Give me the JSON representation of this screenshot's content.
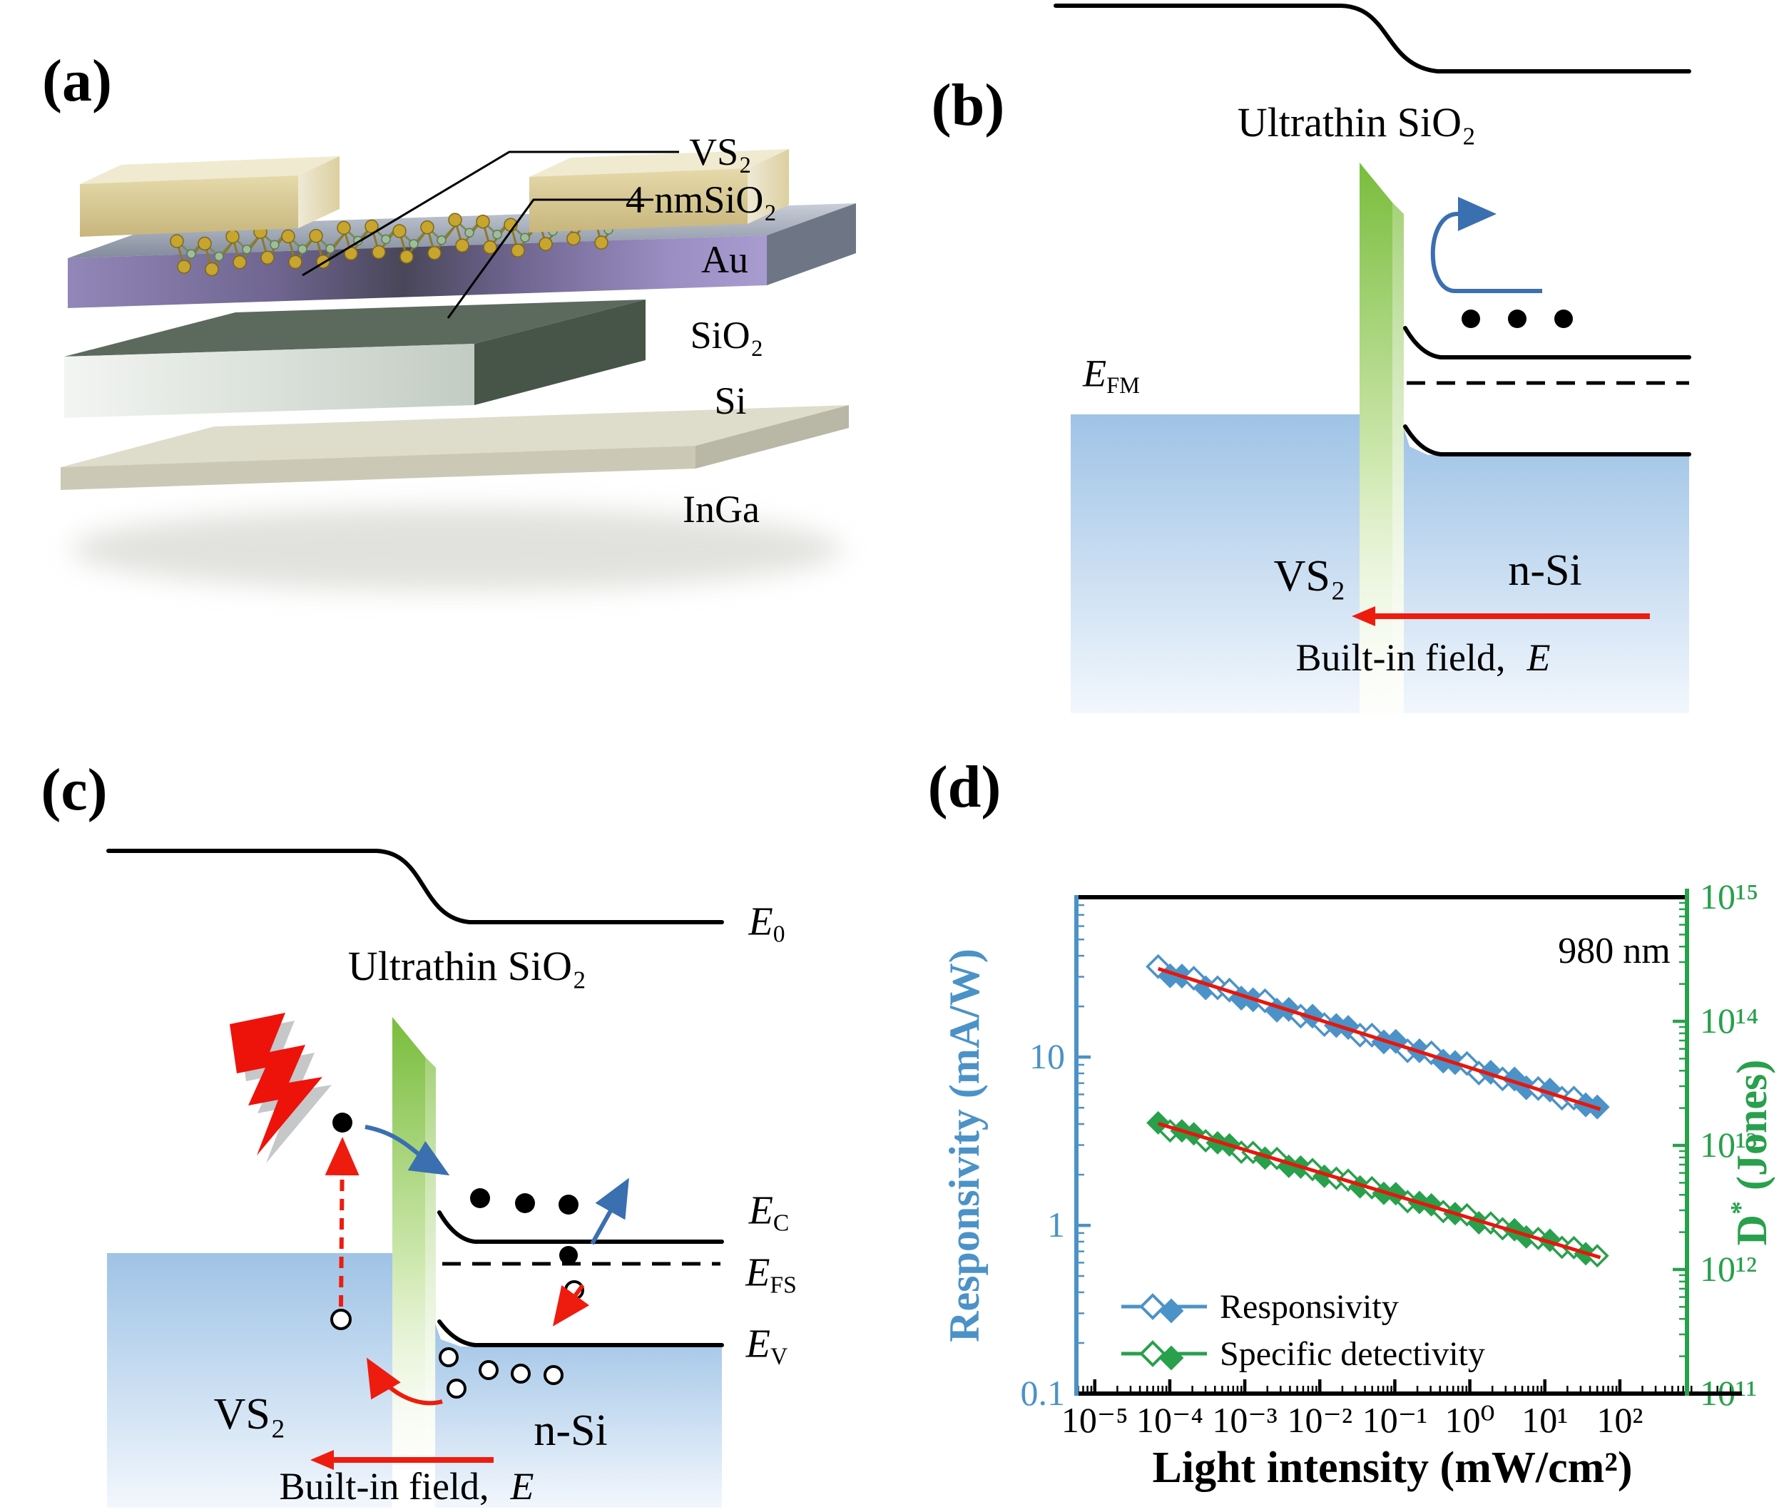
{
  "figure": {
    "panel_a": {
      "label": "(a)",
      "vs2": "VS₂",
      "sio2_4nm": "4 nmSiO₂",
      "au": "Au",
      "sio2": "SiO₂",
      "si": "Si",
      "inga": "InGa"
    },
    "panel_b": {
      "label": "(b)",
      "title": "Ultrathin SiO₂",
      "efm_base": "E",
      "efm_sub": "FM",
      "vs2": "VS₂",
      "nsi": "n-Si",
      "field_label": "Built-in field,",
      "field_e": "E"
    },
    "panel_c": {
      "label": "(c)",
      "title": "Ultrathin SiO₂",
      "e0_base": "E",
      "e0_sub": "0",
      "ec_base": "E",
      "ec_sub": "C",
      "efs_base": "E",
      "efs_sub": "FS",
      "ev_base": "E",
      "ev_sub": "V",
      "vs2": "VS₂",
      "nsi": "n-Si",
      "field_label": "Built-in field,",
      "field_e": "E"
    },
    "panel_d": {
      "label": "(d)"
    }
  },
  "chart_data": {
    "type": "scatter",
    "annotation": "980 nm",
    "x_axis": {
      "label": "Light intensity (mW/cm²)",
      "scale": "log",
      "range_log": [
        -5.245,
        2.895
      ],
      "tick_exponents": [
        -5,
        -4,
        -3,
        -2,
        -1,
        0,
        1,
        2
      ],
      "tick_labels": [
        "10⁻⁵",
        "10⁻⁴",
        "10⁻³",
        "10⁻²",
        "10⁻¹",
        "10⁰",
        "10¹",
        "10²"
      ]
    },
    "y_left": {
      "label": "Responsivity (mA/W)",
      "scale": "log",
      "range_log": [
        -1,
        1.95
      ],
      "tick_values": [
        0.1,
        1,
        10
      ],
      "tick_labels": [
        "0.1",
        "1",
        "10"
      ],
      "color": "#4b92c8"
    },
    "y_right": {
      "label_base": "D",
      "label_sup": "*",
      "label_rest": " (Jones)",
      "scale": "log",
      "range_log": [
        11,
        15
      ],
      "tick_exponents": [
        11,
        12,
        13,
        14,
        15
      ],
      "tick_labels": [
        "10¹¹",
        "10¹²",
        "10¹³",
        "10¹⁴",
        "10¹⁵"
      ],
      "color": "#28a04c"
    },
    "legend": [
      {
        "label": "Responsivity"
      },
      {
        "label": "Specific detectivity"
      }
    ],
    "series": [
      {
        "name": "Responsivity",
        "axis": "left",
        "units": "mA/W",
        "color": "#4b92c8",
        "x": [
          7e-05,
          0.000101,
          0.000145,
          0.000209,
          0.000301,
          0.000434,
          0.000624,
          0.000898,
          0.00129,
          0.00186,
          0.00268,
          0.00386,
          0.00556,
          0.008,
          0.0115,
          0.0166,
          0.0239,
          0.0344,
          0.0495,
          0.0713,
          0.103,
          0.148,
          0.213,
          0.307,
          0.442,
          0.636,
          0.916,
          1.32,
          1.9,
          2.73,
          3.94,
          5.66,
          8.16,
          11.7,
          16.9,
          24.4,
          35.1,
          50.0
        ],
        "y": [
          34.5,
          30.4,
          30.3,
          29.4,
          25.8,
          25.8,
          25.0,
          22.4,
          21.9,
          21.6,
          19.0,
          19.2,
          17.5,
          17.5,
          15.6,
          15.4,
          15.0,
          13.5,
          13.5,
          12.3,
          12.4,
          10.9,
          10.9,
          10.6,
          9.46,
          9.27,
          9.16,
          8.04,
          8.12,
          7.42,
          7.41,
          6.57,
          6.5,
          6.37,
          5.7,
          5.7,
          5.2,
          5.05
        ],
        "filled": [
          0,
          1,
          1,
          0,
          1,
          0,
          0,
          1,
          1,
          0,
          1,
          1,
          0,
          1,
          0,
          1,
          1,
          0,
          0,
          1,
          1,
          0,
          1,
          0,
          1,
          1,
          0,
          0,
          1,
          0,
          1,
          1,
          0,
          1,
          0,
          0,
          1,
          1
        ]
      },
      {
        "name": "Specific detectivity",
        "axis": "right",
        "units": "Jones",
        "color": "#28a04c",
        "x": [
          7e-05,
          0.000101,
          0.000145,
          0.000209,
          0.000301,
          0.000434,
          0.000624,
          0.000898,
          0.00129,
          0.00186,
          0.00268,
          0.00386,
          0.00556,
          0.008,
          0.0115,
          0.0166,
          0.0239,
          0.0344,
          0.0495,
          0.0713,
          0.103,
          0.148,
          0.213,
          0.307,
          0.442,
          0.636,
          0.916,
          1.32,
          1.9,
          2.73,
          3.94,
          5.66,
          8.16,
          11.7,
          16.9,
          24.4,
          35.1,
          50.0
        ],
        "y": [
          15200000000000.0,
          13100000000000.0,
          13100000000000.0,
          12400000000000.0,
          10900000000000.0,
          10500000000000.0,
          10100000000000.0,
          8820000000000.0,
          8780000000000.0,
          7900000000000.0,
          7850000000000.0,
          6790000000000.0,
          6690000000000.0,
          6390000000000.0,
          5640000000000.0,
          5440000000000.0,
          5250000000000.0,
          4630000000000.0,
          4560000000000.0,
          4110000000000.0,
          4080000000000.0,
          3520000000000.0,
          3470000000000.0,
          3320000000000.0,
          2930000000000.0,
          2820000000000.0,
          2760000000000.0,
          2380000000000.0,
          2370000000000.0,
          2130000000000.0,
          2090000000000.0,
          1830000000000.0,
          1780000000000.0,
          1720000000000.0,
          1510000000000.0,
          1500000000000.0,
          1340000000000.0,
          1290000000000.0
        ],
        "filled": [
          1,
          0,
          1,
          1,
          0,
          1,
          1,
          0,
          0,
          1,
          0,
          1,
          1,
          0,
          1,
          0,
          0,
          1,
          0,
          1,
          1,
          0,
          1,
          1,
          0,
          1,
          0,
          1,
          0,
          0,
          1,
          1,
          0,
          1,
          0,
          0,
          1,
          0
        ]
      }
    ],
    "fit_lines": [
      {
        "axis": "left",
        "color": "#e8160c",
        "x": [
          7e-05,
          55
        ],
        "y": [
          33.5,
          4.9
        ]
      },
      {
        "axis": "right",
        "color": "#e8160c",
        "x": [
          7e-05,
          55
        ],
        "y": [
          15000000000000.0,
          1250000000000.0
        ]
      }
    ]
  }
}
